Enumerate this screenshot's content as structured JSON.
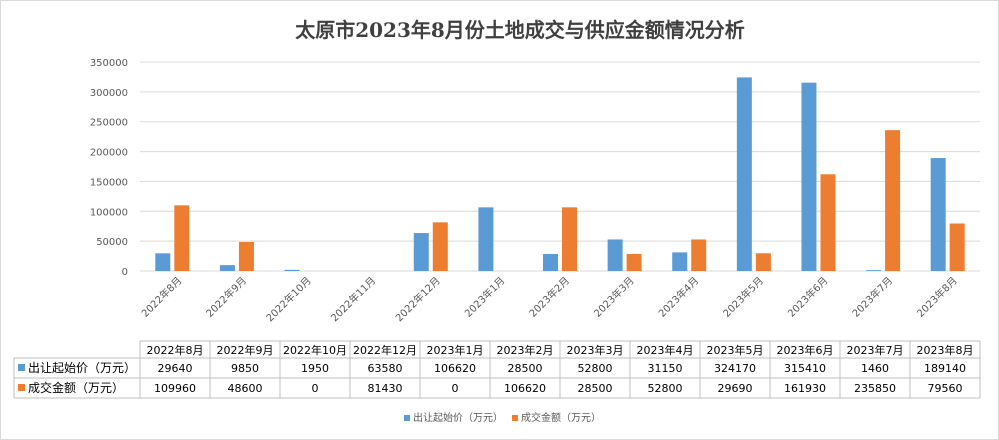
{
  "chart_data": {
    "type": "bar",
    "title": "太原市2023年8月份土地成交与供应金额情况分析",
    "categories": [
      "2022年8月",
      "2022年9月",
      "2022年10月",
      "2022年11月",
      "2022年12月",
      "2023年1月",
      "2023年2月",
      "2023年3月",
      "2023年4月",
      "2023年5月",
      "2023年6月",
      "2023年7月",
      "2023年8月"
    ],
    "table_categories": [
      "2022年8月",
      "2022年9月",
      "2022年10月",
      "2022年12月",
      "2023年1月",
      "2023年2月",
      "2023年3月",
      "2023年4月",
      "2023年5月",
      "2023年6月",
      "2023年7月",
      "2023年8月"
    ],
    "series": [
      {
        "name": "出让起始价（万元）",
        "color": "#5b9bd5",
        "values": [
          29640,
          9850,
          1950,
          null,
          63580,
          106620,
          28500,
          52800,
          31150,
          324170,
          315410,
          1460,
          189140
        ],
        "table_values": [
          "29640",
          "9850",
          "1950",
          "63580",
          "106620",
          "28500",
          "52800",
          "31150",
          "324170",
          "315410",
          "1460",
          "189140"
        ]
      },
      {
        "name": "成交金额（万元）",
        "color": "#ed7d31",
        "values": [
          109960,
          48600,
          0,
          null,
          81430,
          0,
          106620,
          28500,
          52800,
          29690,
          161930,
          235850,
          79560
        ],
        "table_values": [
          "109960",
          "48600",
          "0",
          "81430",
          "0",
          "106620",
          "28500",
          "52800",
          "29690",
          "161930",
          "235850",
          "79560"
        ]
      }
    ],
    "ylim": [
      0,
      350000
    ],
    "yticks": [
      "0",
      "50000",
      "100000",
      "150000",
      "200000",
      "250000",
      "300000",
      "350000"
    ],
    "grid": true,
    "legend": "bottom",
    "data_table": true
  }
}
